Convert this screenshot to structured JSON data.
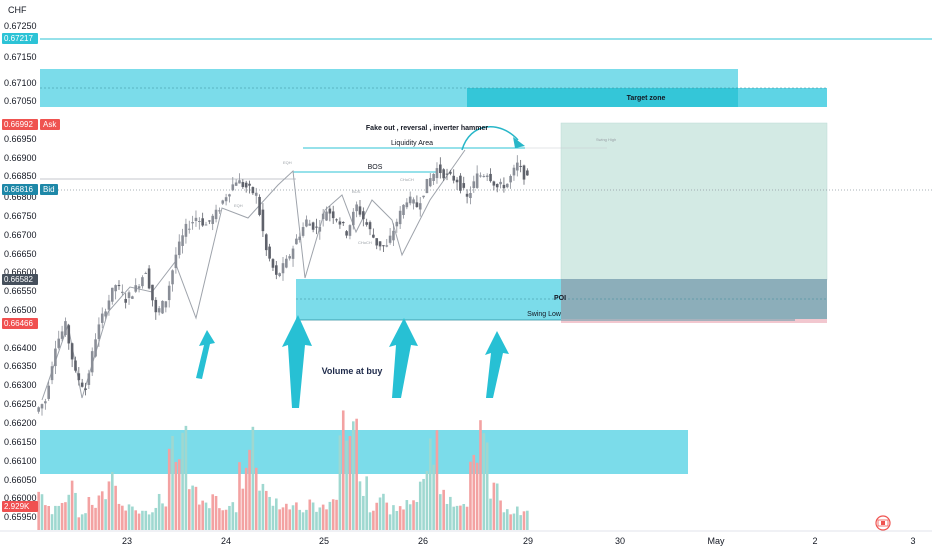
{
  "colors": {
    "zone": "#64d6e6",
    "zone_dark": "#2cc3d6",
    "up": "#777a84",
    "down": "#6b6e78",
    "vol_up": "#9fd8d0",
    "vol_down": "#f3a2a2",
    "ask": "#ef5350",
    "bid": "#1e88a8",
    "current": "#46505c",
    "low": "#f05050",
    "target": "#cfe8e2",
    "arrow": "#27c0d4"
  },
  "price_axis": {
    "currency": "CHF",
    "ticks": [
      "0.67250",
      "0.67150",
      "0.67100",
      "0.67050",
      "0.66950",
      "0.66900",
      "0.66850",
      "0.66800",
      "0.66750",
      "0.66700",
      "0.66650",
      "0.66600",
      "0.66550",
      "0.66500",
      "0.66400",
      "0.66350",
      "0.66300",
      "0.66250",
      "0.66200",
      "0.66150",
      "0.66100",
      "0.66050",
      "0.66000",
      "0.65950"
    ],
    "badges": {
      "top_line": "0.67217",
      "ask_price": "0.66992",
      "ask_label": "Ask",
      "bid_price": "0.66816",
      "bid_label": "Bid",
      "current": "0.66582",
      "low": "0.66466",
      "volume": "2.929K"
    }
  },
  "time_axis": {
    "ticks": [
      "23",
      "24",
      "25",
      "26",
      "29",
      "30",
      "May",
      "2",
      "3"
    ]
  },
  "annotations": {
    "target_zone": "Target zone",
    "fakeout": "Fake out , reversal , inverter hammer",
    "liquidity": "Liquidity Area",
    "bos": "BOS",
    "poi": "POI",
    "swing_low": "Swing Low",
    "volume_at_buy": "Volume at buy",
    "eqh": "EQH",
    "bos_small": "BOS",
    "choch": "CHoCH",
    "choch2": "CHoCH",
    "swing_high": "Swing High"
  },
  "chart_data": {
    "type": "candlestick",
    "symbol_currency": "CHF",
    "y_range": [
      0.6593,
      0.673
    ],
    "x_days": [
      "23",
      "24",
      "25",
      "26",
      "29"
    ],
    "close_path": [
      0.6625,
      0.664,
      0.6645,
      0.6632,
      0.6628,
      0.6642,
      0.665,
      0.6656,
      0.6652,
      0.6655,
      0.666,
      0.6648,
      0.6652,
      0.6664,
      0.6671,
      0.6674,
      0.6672,
      0.6675,
      0.668,
      0.6684,
      0.6682,
      0.668,
      0.6665,
      0.6658,
      0.6662,
      0.6668,
      0.6673,
      0.6671,
      0.6676,
      0.6674,
      0.667,
      0.6677,
      0.6672,
      0.6667,
      0.6666,
      0.6673,
      0.6679,
      0.6677,
      0.6683,
      0.6687,
      0.6685,
      0.6684,
      0.6679,
      0.6685,
      0.6686,
      0.6682,
      0.6683,
      0.6688,
      0.6684
    ],
    "volume_levels": [
      0.8,
      0.5,
      0.6,
      1.1,
      0.4,
      0.7,
      0.9,
      1.3,
      0.5,
      0.6,
      0.4,
      0.5,
      0.8,
      1.9,
      2.2,
      0.9,
      0.6,
      0.7,
      0.5,
      0.6,
      1.3,
      2.0,
      1.1,
      0.7,
      0.6,
      0.7,
      0.5,
      0.6,
      0.5,
      0.9,
      2.3,
      2.7,
      1.1,
      0.6,
      0.7,
      0.5,
      0.6,
      0.8,
      1.2,
      1.9,
      0.9,
      0.7,
      0.8,
      1.5,
      2.1,
      0.9,
      0.6,
      0.5,
      0.4
    ],
    "levels": {
      "ask": 0.66992,
      "bid": 0.66816,
      "current": 0.66582,
      "low": 0.66466,
      "top_line": 0.67217
    }
  }
}
